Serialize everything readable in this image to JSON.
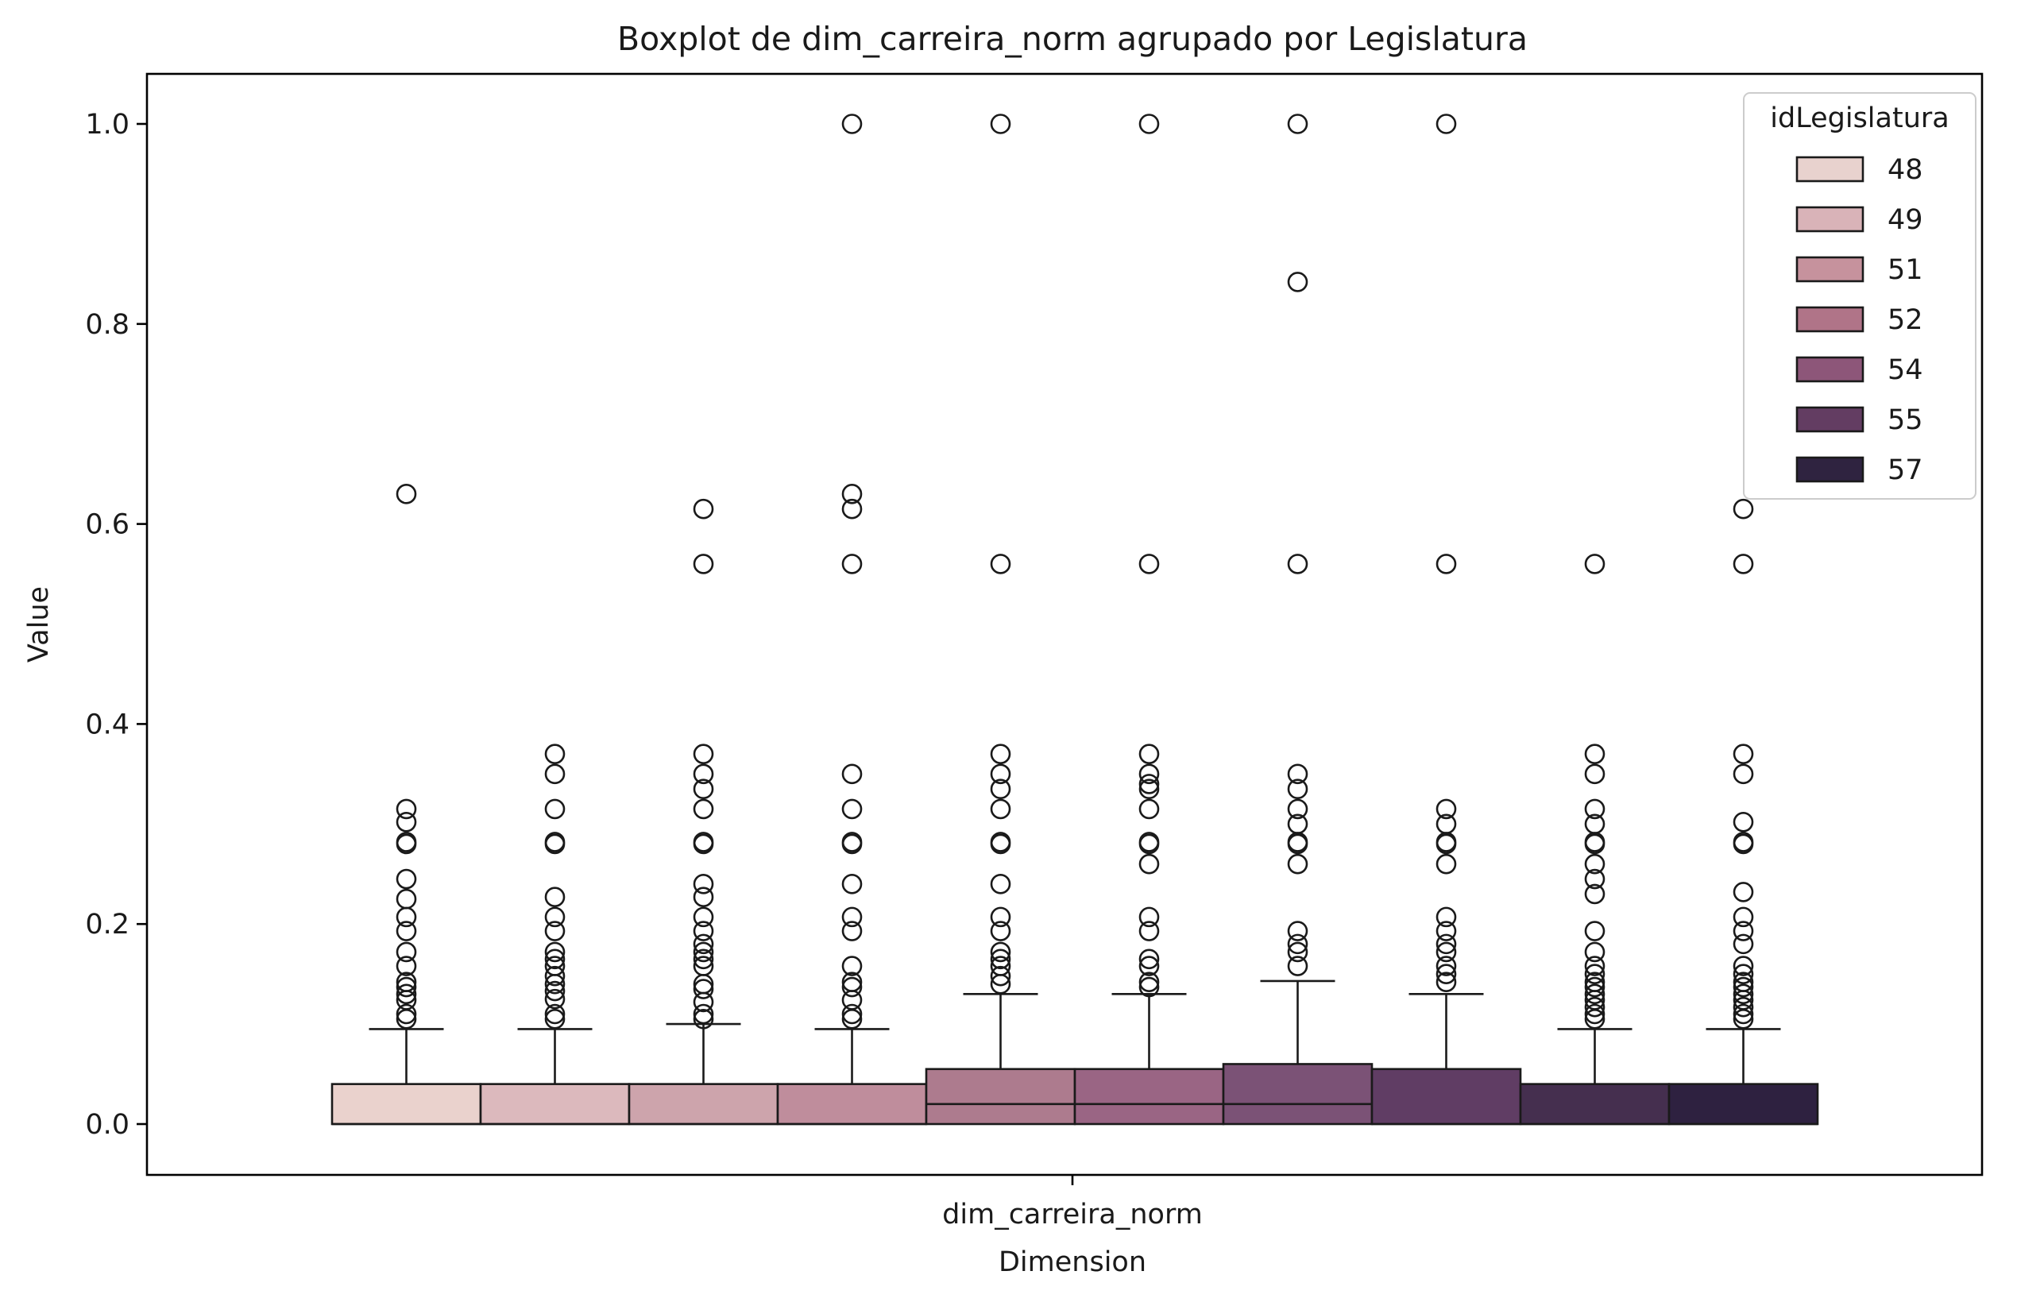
{
  "chart_data": {
    "type": "boxplot",
    "title": "Boxplot de dim_carreira_norm agrupado por Legislatura",
    "xlabel": "Dimension",
    "ylabel": "Value",
    "x_category": "dim_carreira_norm",
    "ylim": [
      -0.05,
      1.05
    ],
    "yticks": [
      0.0,
      0.2,
      0.4,
      0.6,
      0.8,
      1.0
    ],
    "ytick_labels": [
      "0.0",
      "0.2",
      "0.4",
      "0.6",
      "0.8",
      "1.0"
    ],
    "grid": false,
    "legend": {
      "title": "idLegislatura",
      "placement": "top-right",
      "entries": [
        {
          "label": "48",
          "color": "#e8d2ce"
        },
        {
          "label": "49",
          "color": "#d9b3b8"
        },
        {
          "label": "51",
          "color": "#c6929d"
        },
        {
          "label": "52",
          "color": "#b07488"
        },
        {
          "label": "54",
          "color": "#8d5679"
        },
        {
          "label": "55",
          "color": "#633d62"
        },
        {
          "label": "57",
          "color": "#2f2340"
        }
      ]
    },
    "boxes": [
      {
        "color": "#ead2cd",
        "q1": 0.0,
        "median": 0.0,
        "q3": 0.04,
        "whisker_low": 0.0,
        "whisker_high": 0.095,
        "outliers": [
          0.63,
          0.315,
          0.302,
          0.282,
          0.28,
          0.245,
          0.225,
          0.207,
          0.193,
          0.172,
          0.158,
          0.142,
          0.137,
          0.13,
          0.124,
          0.11,
          0.105
        ]
      },
      {
        "color": "#dcb9bd",
        "q1": 0.0,
        "median": 0.0,
        "q3": 0.04,
        "whisker_low": 0.0,
        "whisker_high": 0.095,
        "outliers": [
          0.37,
          0.35,
          0.315,
          0.282,
          0.28,
          0.227,
          0.207,
          0.193,
          0.172,
          0.165,
          0.158,
          0.148,
          0.14,
          0.133,
          0.125,
          0.11,
          0.105
        ]
      },
      {
        "color": "#cda4ac",
        "q1": 0.0,
        "median": 0.0,
        "q3": 0.04,
        "whisker_low": 0.0,
        "whisker_high": 0.1,
        "outliers": [
          0.615,
          0.56,
          0.37,
          0.35,
          0.335,
          0.315,
          0.282,
          0.28,
          0.24,
          0.227,
          0.207,
          0.193,
          0.18,
          0.172,
          0.165,
          0.158,
          0.14,
          0.135,
          0.122,
          0.11,
          0.105
        ]
      },
      {
        "color": "#bf8d9c",
        "q1": 0.0,
        "median": 0.0,
        "q3": 0.04,
        "whisker_low": 0.0,
        "whisker_high": 0.095,
        "outliers": [
          1.0,
          0.63,
          0.615,
          0.56,
          0.35,
          0.315,
          0.282,
          0.28,
          0.24,
          0.207,
          0.193,
          0.158,
          0.142,
          0.137,
          0.124,
          0.11,
          0.105
        ]
      },
      {
        "color": "#ad7b8e",
        "q1": 0.0,
        "median": 0.02,
        "q3": 0.055,
        "whisker_low": 0.0,
        "whisker_high": 0.13,
        "outliers": [
          1.0,
          0.56,
          0.37,
          0.35,
          0.335,
          0.315,
          0.282,
          0.28,
          0.24,
          0.207,
          0.193,
          0.172,
          0.165,
          0.158,
          0.148,
          0.14
        ]
      },
      {
        "color": "#9a6584",
        "q1": 0.0,
        "median": 0.02,
        "q3": 0.055,
        "whisker_low": 0.0,
        "whisker_high": 0.13,
        "outliers": [
          1.0,
          0.56,
          0.37,
          0.35,
          0.34,
          0.335,
          0.315,
          0.282,
          0.28,
          0.26,
          0.207,
          0.193,
          0.165,
          0.158,
          0.142,
          0.137
        ]
      },
      {
        "color": "#7b5276",
        "q1": 0.0,
        "median": 0.02,
        "q3": 0.06,
        "whisker_low": 0.0,
        "whisker_high": 0.143,
        "outliers": [
          1.0,
          0.842,
          0.56,
          0.35,
          0.335,
          0.315,
          0.3,
          0.282,
          0.28,
          0.26,
          0.193,
          0.18,
          0.172,
          0.158
        ]
      },
      {
        "color": "#603d64",
        "q1": 0.0,
        "median": 0.0,
        "q3": 0.055,
        "whisker_low": 0.0,
        "whisker_high": 0.13,
        "outliers": [
          1.0,
          0.56,
          0.315,
          0.3,
          0.282,
          0.28,
          0.26,
          0.207,
          0.193,
          0.18,
          0.172,
          0.158,
          0.15,
          0.142
        ]
      },
      {
        "color": "#452f4f",
        "q1": 0.0,
        "median": 0.0,
        "q3": 0.04,
        "whisker_low": 0.0,
        "whisker_high": 0.095,
        "outliers": [
          0.56,
          0.37,
          0.35,
          0.315,
          0.3,
          0.282,
          0.28,
          0.26,
          0.245,
          0.23,
          0.193,
          0.172,
          0.158,
          0.15,
          0.142,
          0.137,
          0.13,
          0.124,
          0.117,
          0.11,
          0.105
        ]
      },
      {
        "color": "#2e2140",
        "q1": 0.0,
        "median": 0.0,
        "q3": 0.04,
        "whisker_low": 0.0,
        "whisker_high": 0.095,
        "outliers": [
          0.615,
          0.56,
          0.37,
          0.35,
          0.302,
          0.282,
          0.28,
          0.232,
          0.207,
          0.193,
          0.18,
          0.158,
          0.15,
          0.142,
          0.137,
          0.13,
          0.124,
          0.117,
          0.11,
          0.105
        ]
      }
    ]
  }
}
